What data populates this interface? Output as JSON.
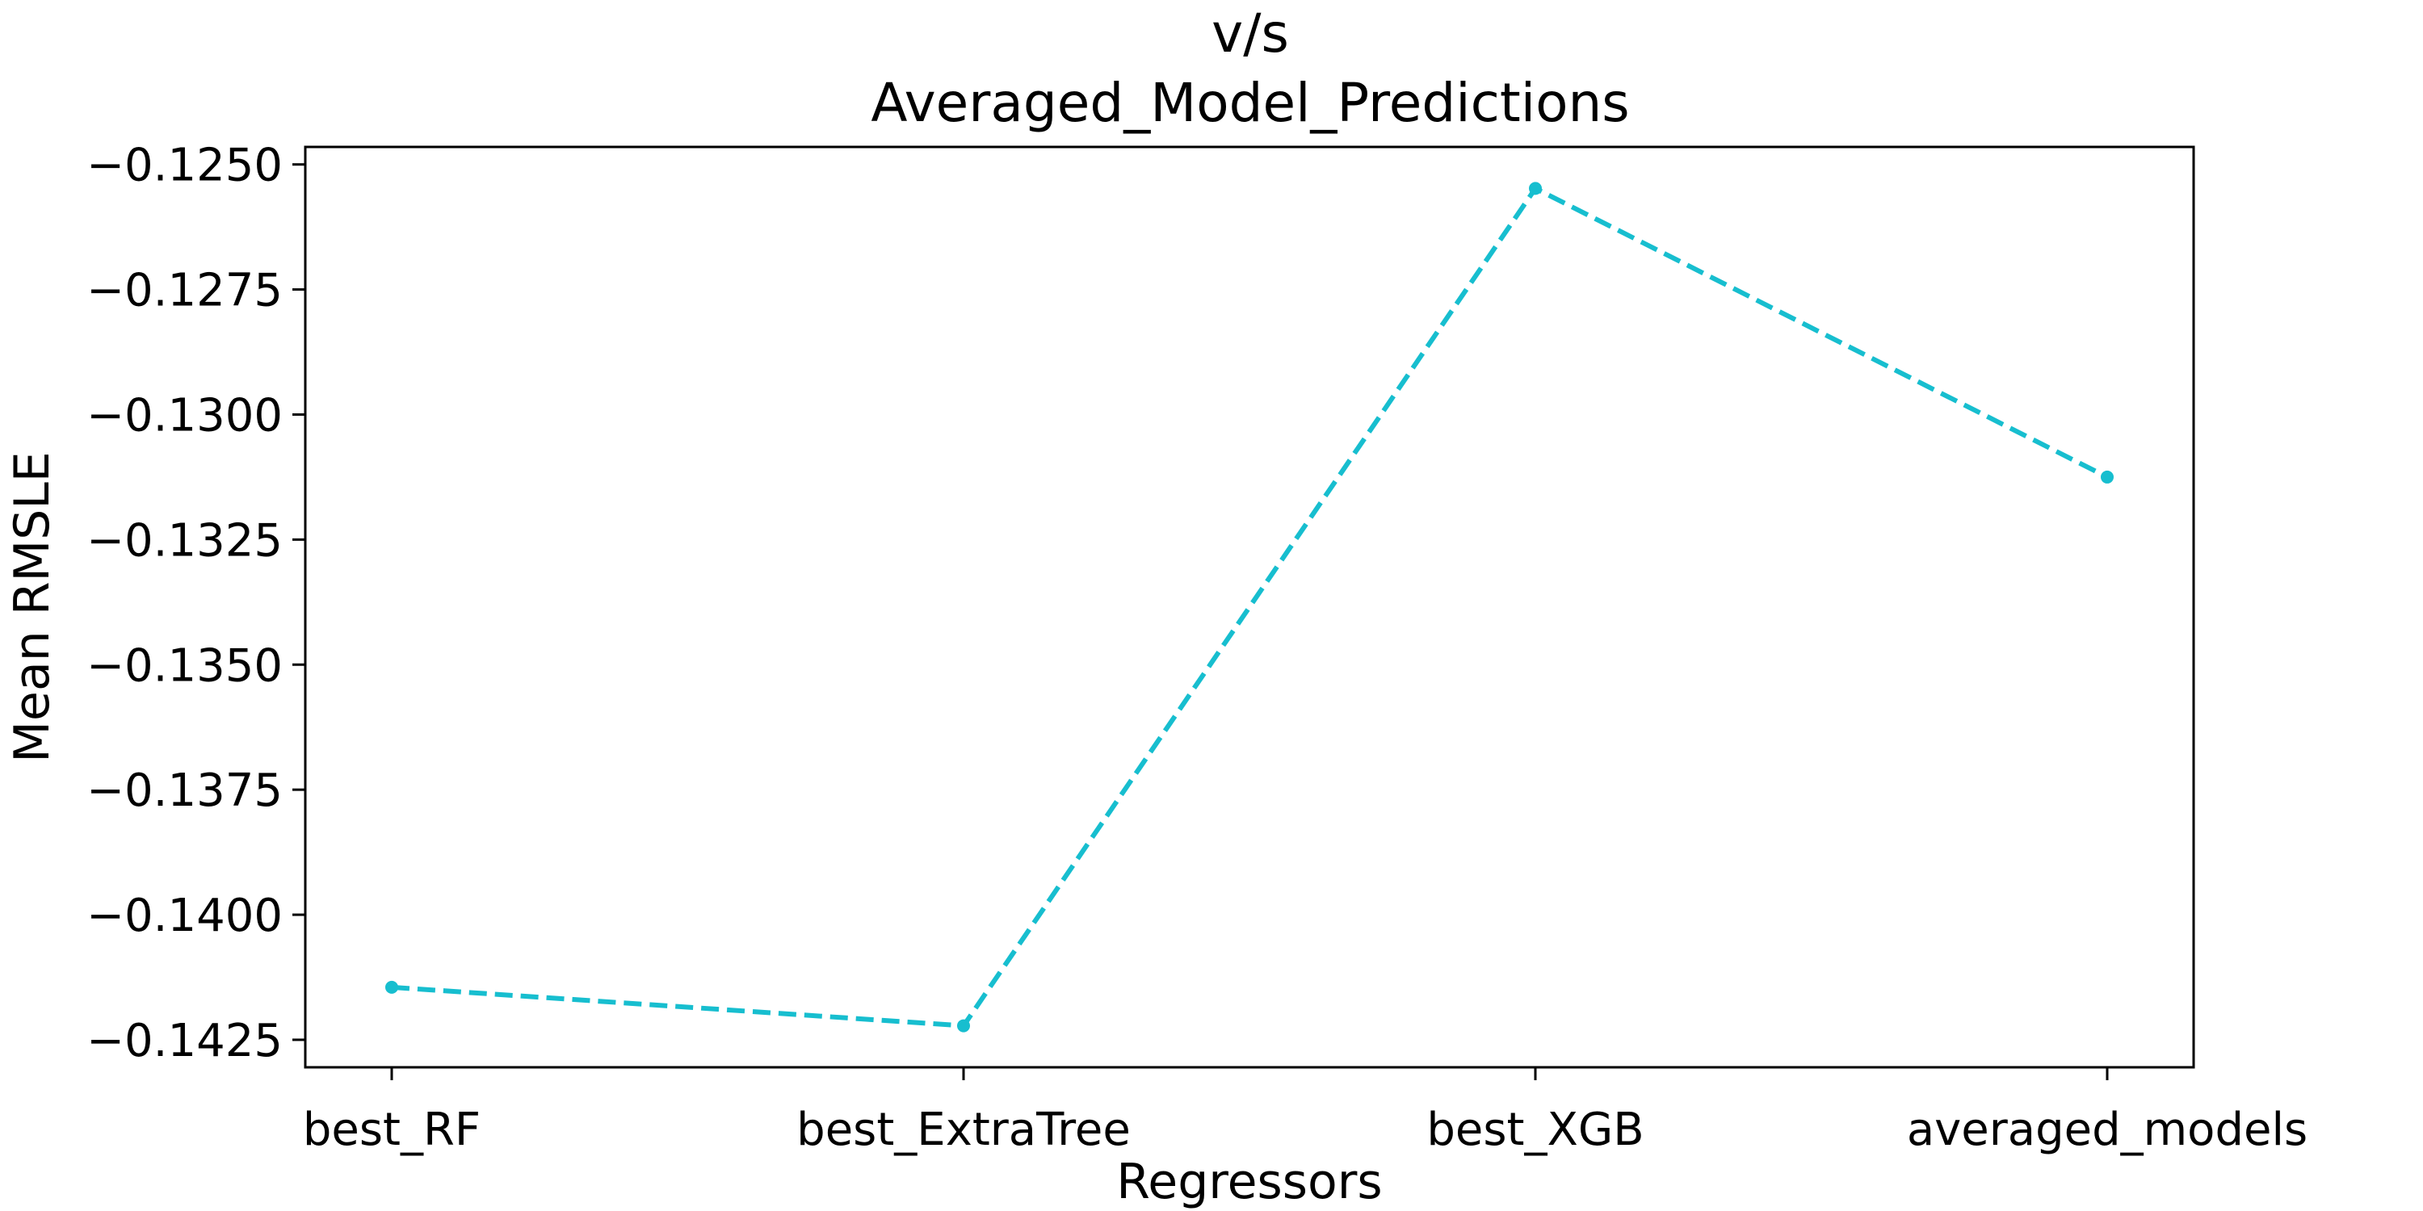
{
  "chart_data": {
    "type": "line",
    "title_lines": [
      "v/s",
      "Averaged_Model_Predictions"
    ],
    "xlabel": "Regressors",
    "ylabel": "Mean RMSLE",
    "categories": [
      "best_RF",
      "best_ExtraTree",
      "best_XGB",
      "averaged_models"
    ],
    "series": [
      {
        "values": [
          -0.14145,
          -0.14222,
          -0.12548,
          -0.13125
        ],
        "color": "#17becf",
        "line_style": "dashed",
        "marker": "circle"
      }
    ],
    "ylim": [
      -0.14305,
      -0.12465
    ],
    "yticks": [
      -0.1425,
      -0.14,
      -0.1375,
      -0.135,
      -0.1325,
      -0.13,
      -0.1275,
      -0.125
    ],
    "ytick_labels": [
      "−0.1425",
      "−0.1400",
      "−0.1375",
      "−0.1350",
      "−0.1325",
      "−0.1300",
      "−0.1275",
      "−0.1250"
    ],
    "grid": false,
    "legend": false
  }
}
